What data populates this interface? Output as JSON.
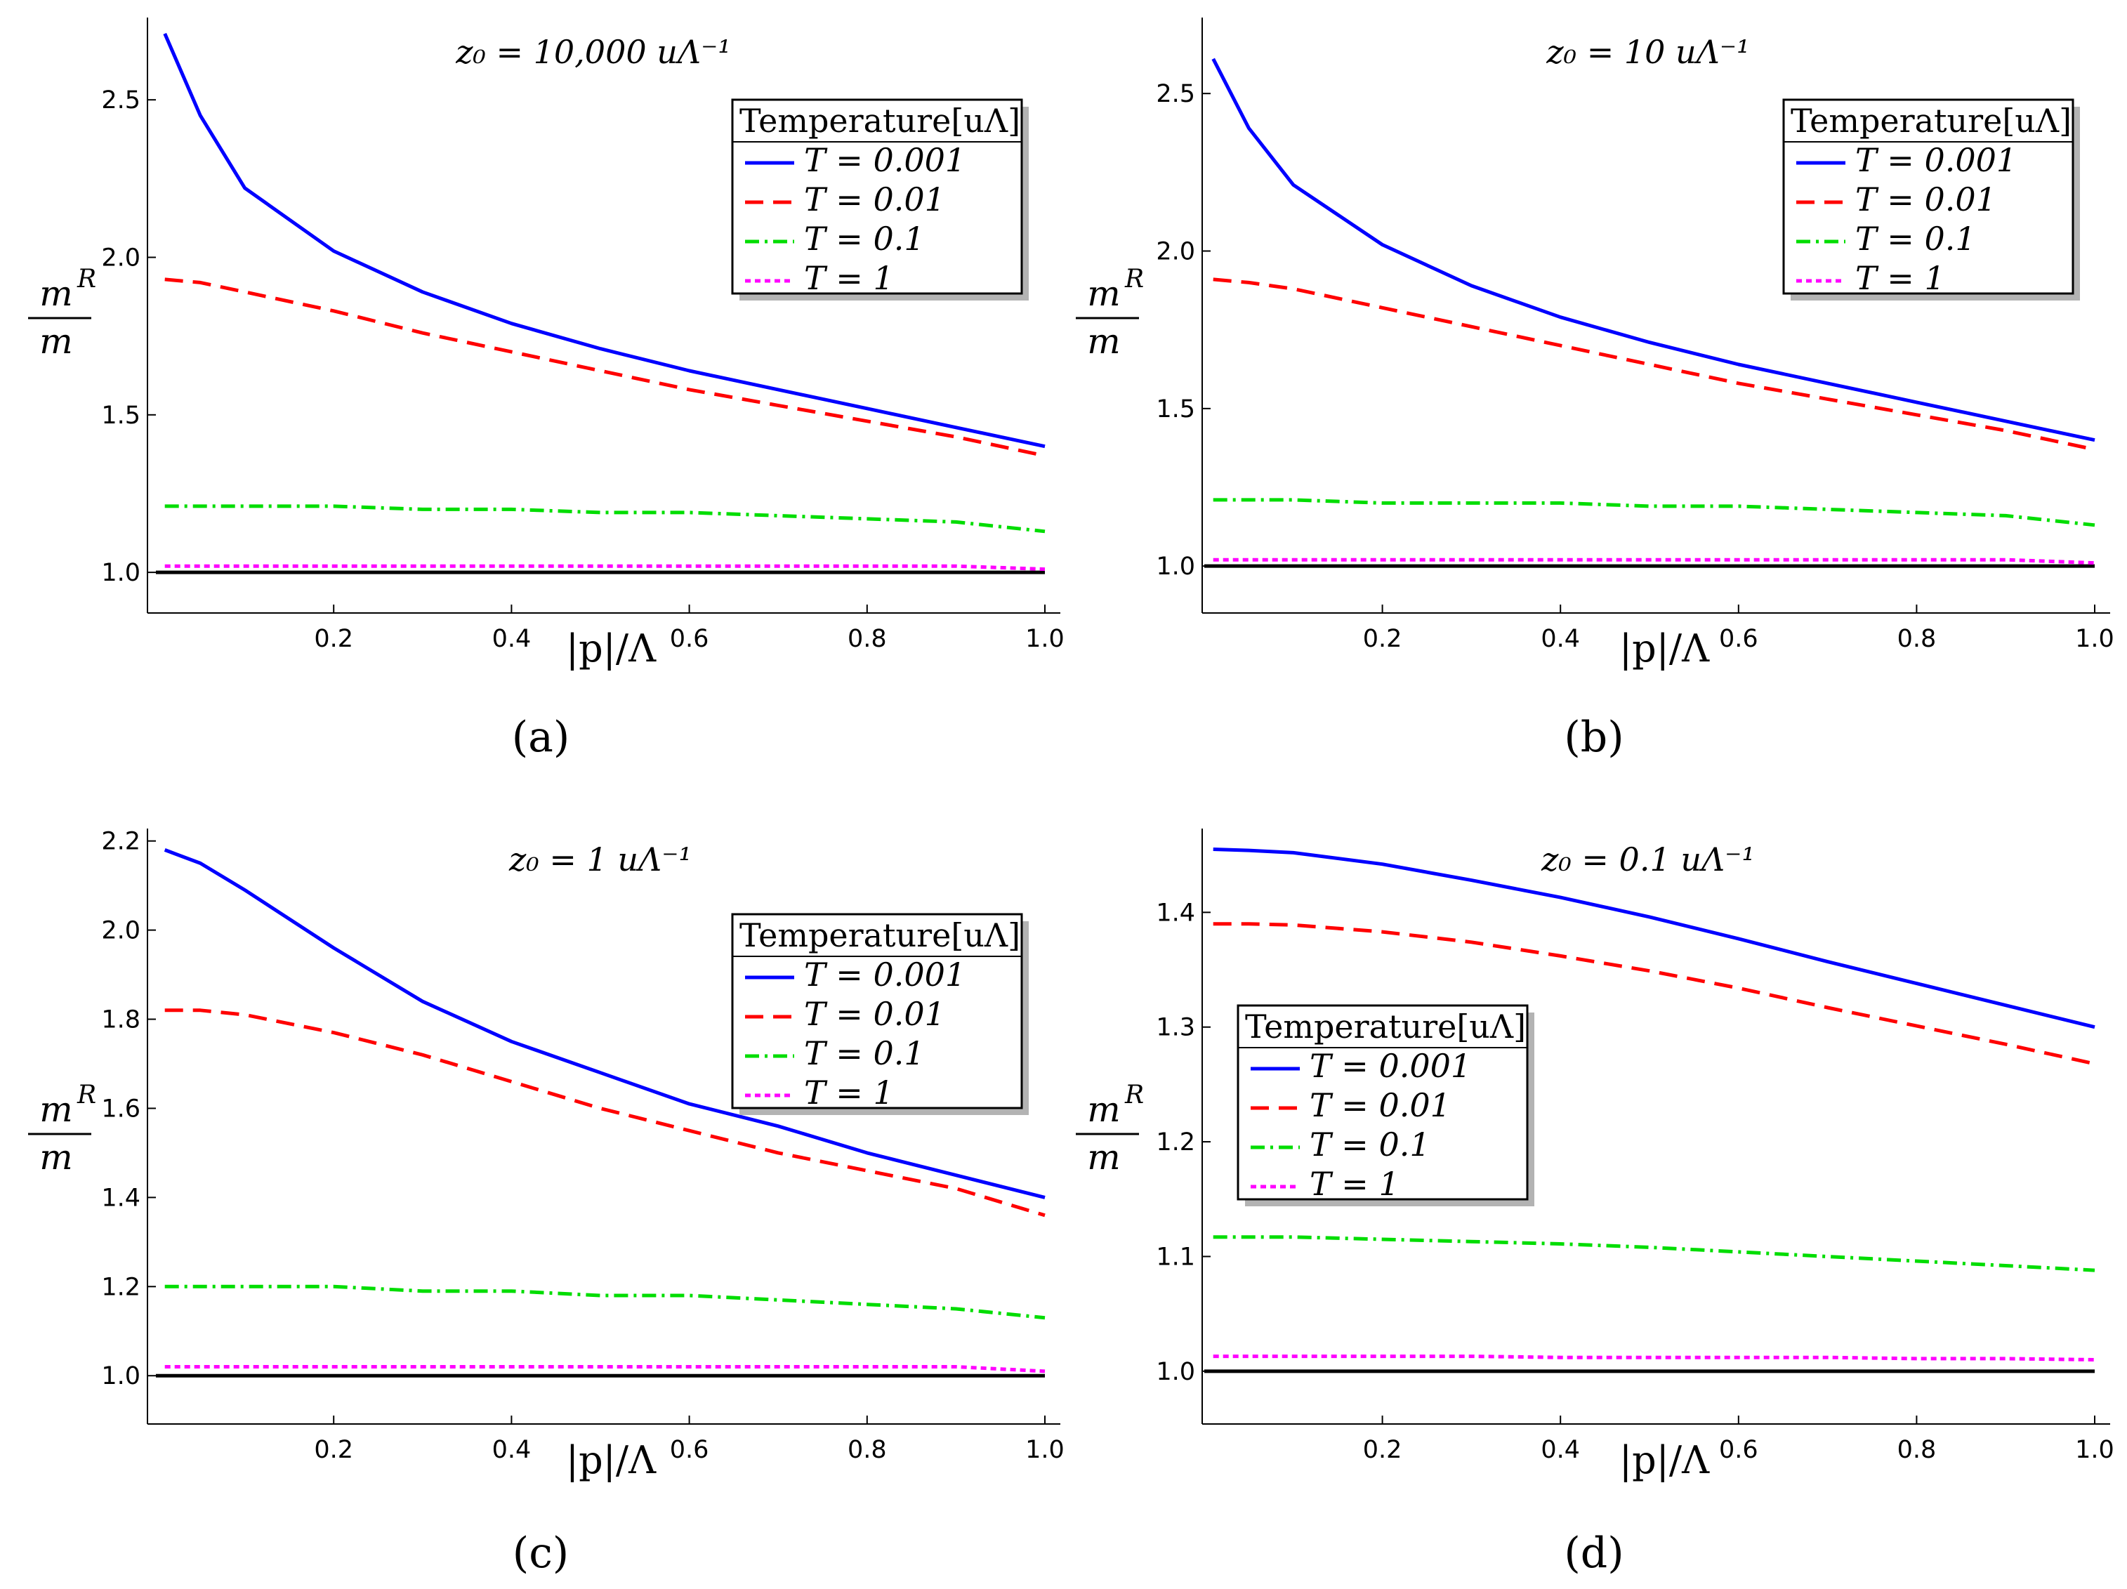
{
  "figure": {
    "ylabel": {
      "numerator": "m",
      "superscript": "R",
      "denominator": "m"
    },
    "xlabel": "|p|/Λ"
  },
  "chart_data": [
    {
      "type": "line",
      "caption": "(a)",
      "title": "z₀ = 10,000 uΛ⁻¹",
      "xlim": [
        0,
        1.0
      ],
      "ylim": [
        0.9,
        2.75
      ],
      "xticks": [
        "0.2",
        "0.4",
        "0.6",
        "0.8",
        "1.0"
      ],
      "yticks": [
        "1.0",
        "1.5",
        "2.0",
        "2.5"
      ],
      "legend": {
        "title": "Temperature[uΛ]",
        "position": "top-right"
      },
      "baseline": 1.0,
      "x": [
        0.01,
        0.05,
        0.1,
        0.2,
        0.3,
        0.4,
        0.5,
        0.6,
        0.7,
        0.8,
        0.9,
        1.0
      ],
      "series": [
        {
          "name": "T = 0.001",
          "color": "#0000ff",
          "style": "solid",
          "values": [
            2.71,
            2.45,
            2.22,
            2.02,
            1.89,
            1.79,
            1.71,
            1.64,
            1.58,
            1.52,
            1.46,
            1.4
          ]
        },
        {
          "name": "T = 0.01",
          "color": "#ff0000",
          "style": "dashed",
          "values": [
            1.93,
            1.92,
            1.89,
            1.83,
            1.76,
            1.7,
            1.64,
            1.58,
            1.53,
            1.48,
            1.43,
            1.37
          ]
        },
        {
          "name": "T = 0.1",
          "color": "#00dd00",
          "style": "dashdot",
          "values": [
            1.21,
            1.21,
            1.21,
            1.21,
            1.2,
            1.2,
            1.19,
            1.19,
            1.18,
            1.17,
            1.16,
            1.13
          ]
        },
        {
          "name": "T = 1",
          "color": "#ff00ff",
          "style": "dotted",
          "values": [
            1.02,
            1.02,
            1.02,
            1.02,
            1.02,
            1.02,
            1.02,
            1.02,
            1.02,
            1.02,
            1.02,
            1.01
          ]
        }
      ]
    },
    {
      "type": "line",
      "caption": "(b)",
      "title": "z₀ = 10 uΛ⁻¹",
      "xlim": [
        0,
        1.0
      ],
      "ylim": [
        0.88,
        2.73
      ],
      "xticks": [
        "0.2",
        "0.4",
        "0.6",
        "0.8",
        "1.0"
      ],
      "yticks": [
        "1.0",
        "1.5",
        "2.0",
        "2.5"
      ],
      "legend": {
        "title": "Temperature[uΛ]",
        "position": "top-right"
      },
      "baseline": 1.0,
      "x": [
        0.01,
        0.05,
        0.1,
        0.2,
        0.3,
        0.4,
        0.5,
        0.6,
        0.7,
        0.8,
        0.9,
        1.0
      ],
      "series": [
        {
          "name": "T = 0.001",
          "color": "#0000ff",
          "style": "solid",
          "values": [
            2.61,
            2.39,
            2.21,
            2.02,
            1.89,
            1.79,
            1.71,
            1.64,
            1.58,
            1.52,
            1.46,
            1.4
          ]
        },
        {
          "name": "T = 0.01",
          "color": "#ff0000",
          "style": "dashed",
          "values": [
            1.91,
            1.9,
            1.88,
            1.82,
            1.76,
            1.7,
            1.64,
            1.58,
            1.53,
            1.48,
            1.43,
            1.37
          ]
        },
        {
          "name": "T = 0.1",
          "color": "#00dd00",
          "style": "dashdot",
          "values": [
            1.21,
            1.21,
            1.21,
            1.2,
            1.2,
            1.2,
            1.19,
            1.19,
            1.18,
            1.17,
            1.16,
            1.13
          ]
        },
        {
          "name": "T = 1",
          "color": "#ff00ff",
          "style": "dotted",
          "values": [
            1.02,
            1.02,
            1.02,
            1.02,
            1.02,
            1.02,
            1.02,
            1.02,
            1.02,
            1.02,
            1.02,
            1.01
          ]
        }
      ]
    },
    {
      "type": "line",
      "caption": "(c)",
      "title": "z₀ = 1 uΛ⁻¹",
      "xlim": [
        0,
        1.0
      ],
      "ylim": [
        0.92,
        2.22
      ],
      "xticks": [
        "0.2",
        "0.4",
        "0.6",
        "0.8",
        "1.0"
      ],
      "yticks": [
        "1.0",
        "1.2",
        "1.4",
        "1.6",
        "1.8",
        "2.0",
        "2.2"
      ],
      "legend": {
        "title": "Temperature[uΛ]",
        "position": "top-right"
      },
      "baseline": 1.0,
      "x": [
        0.01,
        0.05,
        0.1,
        0.2,
        0.3,
        0.4,
        0.5,
        0.6,
        0.7,
        0.8,
        0.9,
        1.0
      ],
      "series": [
        {
          "name": "T = 0.001",
          "color": "#0000ff",
          "style": "solid",
          "values": [
            2.18,
            2.15,
            2.09,
            1.96,
            1.84,
            1.75,
            1.68,
            1.61,
            1.56,
            1.5,
            1.45,
            1.4
          ]
        },
        {
          "name": "T = 0.01",
          "color": "#ff0000",
          "style": "dashed",
          "values": [
            1.82,
            1.82,
            1.81,
            1.77,
            1.72,
            1.66,
            1.6,
            1.55,
            1.5,
            1.46,
            1.42,
            1.36
          ]
        },
        {
          "name": "T = 0.1",
          "color": "#00dd00",
          "style": "dashdot",
          "values": [
            1.2,
            1.2,
            1.2,
            1.2,
            1.19,
            1.19,
            1.18,
            1.18,
            1.17,
            1.16,
            1.15,
            1.13
          ]
        },
        {
          "name": "T = 1",
          "color": "#ff00ff",
          "style": "dotted",
          "values": [
            1.02,
            1.02,
            1.02,
            1.02,
            1.02,
            1.02,
            1.02,
            1.02,
            1.02,
            1.02,
            1.02,
            1.01
          ]
        }
      ]
    },
    {
      "type": "line",
      "caption": "(d)",
      "title": "z₀ = 0.1 uΛ⁻¹",
      "xlim": [
        0,
        1.0
      ],
      "ylim": [
        0.965,
        1.47
      ],
      "xticks": [
        "0.2",
        "0.4",
        "0.6",
        "0.8",
        "1.0"
      ],
      "yticks": [
        "1.0",
        "1.1",
        "1.2",
        "1.3",
        "1.4"
      ],
      "legend": {
        "title": "Temperature[uΛ]",
        "position": "middle-left"
      },
      "baseline": 1.0,
      "x": [
        0.01,
        0.05,
        0.1,
        0.2,
        0.3,
        0.4,
        0.5,
        0.6,
        0.7,
        0.8,
        0.9,
        1.0
      ],
      "series": [
        {
          "name": "T = 0.001",
          "color": "#0000ff",
          "style": "solid",
          "values": [
            1.455,
            1.454,
            1.452,
            1.442,
            1.428,
            1.413,
            1.396,
            1.377,
            1.357,
            1.338,
            1.319,
            1.3
          ]
        },
        {
          "name": "T = 0.01",
          "color": "#ff0000",
          "style": "dashed",
          "values": [
            1.39,
            1.39,
            1.389,
            1.383,
            1.374,
            1.362,
            1.349,
            1.334,
            1.317,
            1.301,
            1.285,
            1.268
          ]
        },
        {
          "name": "T = 0.1",
          "color": "#00dd00",
          "style": "dashdot",
          "values": [
            1.117,
            1.117,
            1.117,
            1.115,
            1.113,
            1.111,
            1.108,
            1.104,
            1.1,
            1.096,
            1.092,
            1.088
          ]
        },
        {
          "name": "T = 1",
          "color": "#ff00ff",
          "style": "dotted",
          "values": [
            1.013,
            1.013,
            1.013,
            1.013,
            1.013,
            1.012,
            1.012,
            1.012,
            1.012,
            1.011,
            1.011,
            1.01
          ]
        }
      ]
    }
  ]
}
